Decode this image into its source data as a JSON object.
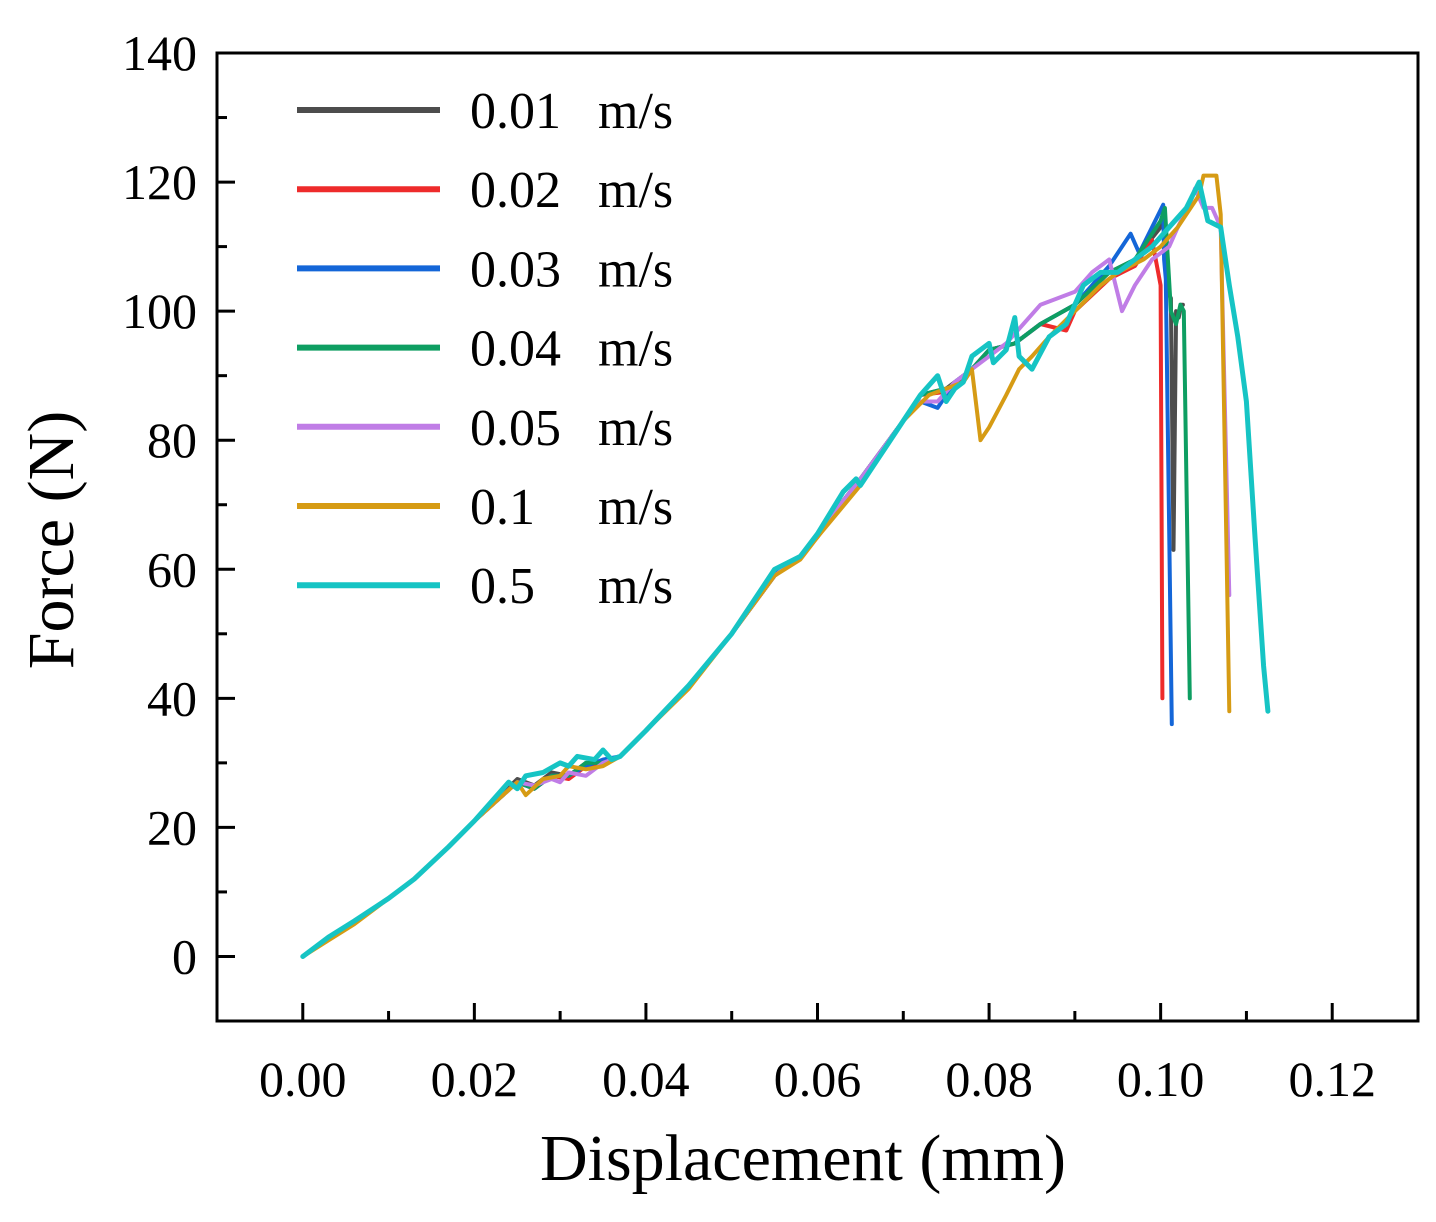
{
  "chart_data": {
    "type": "line",
    "title": "",
    "xlabel": "Displacement (mm)",
    "ylabel": "Force (N)",
    "xlim": [
      -0.01,
      0.13
    ],
    "ylim": [
      -10,
      140
    ],
    "xticks": [
      0.0,
      0.02,
      0.04,
      0.06,
      0.08,
      0.1,
      0.12
    ],
    "xtick_labels": [
      "0.00",
      "0.02",
      "0.04",
      "0.06",
      "0.08",
      "0.10",
      "0.12"
    ],
    "yticks": [
      0,
      20,
      40,
      60,
      80,
      100,
      120,
      140
    ],
    "ytick_labels": [
      "0",
      "20",
      "40",
      "60",
      "80",
      "100",
      "120",
      "140"
    ],
    "grid": false,
    "legend_position": "top-left",
    "series": [
      {
        "name": "0.01 m/s",
        "label_value": "0.01",
        "label_unit": "m/s",
        "color": "#4d4d4d",
        "points": [
          [
            0,
            0
          ],
          [
            0.003,
            3
          ],
          [
            0.006,
            5.5
          ],
          [
            0.01,
            9
          ],
          [
            0.013,
            12
          ],
          [
            0.017,
            17
          ],
          [
            0.02,
            21
          ],
          [
            0.025,
            27.5
          ],
          [
            0.027,
            26.5
          ],
          [
            0.029,
            28.5
          ],
          [
            0.031,
            28
          ],
          [
            0.033,
            30
          ],
          [
            0.035,
            30
          ],
          [
            0.037,
            31
          ],
          [
            0.04,
            35
          ],
          [
            0.045,
            42
          ],
          [
            0.05,
            50
          ],
          [
            0.055,
            59
          ],
          [
            0.058,
            62
          ],
          [
            0.06,
            65.5
          ],
          [
            0.065,
            74
          ],
          [
            0.07,
            83
          ],
          [
            0.072,
            87
          ],
          [
            0.075,
            88
          ],
          [
            0.078,
            91
          ],
          [
            0.08,
            94
          ],
          [
            0.083,
            95
          ],
          [
            0.086,
            98
          ],
          [
            0.09,
            101
          ],
          [
            0.094,
            106
          ],
          [
            0.097,
            108
          ],
          [
            0.1,
            113
          ],
          [
            0.1005,
            114
          ],
          [
            0.1008,
            103
          ],
          [
            0.1012,
            102
          ],
          [
            0.1015,
            63
          ],
          [
            0.1018,
            100
          ],
          [
            0.1021,
            99
          ],
          [
            0.1024,
            101
          ],
          [
            0.1026,
            101
          ]
        ]
      },
      {
        "name": "0.02 m/s",
        "label_value": "0.02",
        "label_unit": "m/s",
        "color": "#ee2b2b",
        "points": [
          [
            0,
            0
          ],
          [
            0.003,
            3
          ],
          [
            0.006,
            5.5
          ],
          [
            0.01,
            9
          ],
          [
            0.013,
            12
          ],
          [
            0.017,
            17
          ],
          [
            0.02,
            21
          ],
          [
            0.025,
            27
          ],
          [
            0.027,
            26
          ],
          [
            0.029,
            28
          ],
          [
            0.031,
            27.5
          ],
          [
            0.033,
            29.5
          ],
          [
            0.035,
            30
          ],
          [
            0.037,
            31
          ],
          [
            0.04,
            35
          ],
          [
            0.045,
            42
          ],
          [
            0.05,
            50
          ],
          [
            0.055,
            59
          ],
          [
            0.058,
            62
          ],
          [
            0.06,
            65
          ],
          [
            0.065,
            74
          ],
          [
            0.07,
            83
          ],
          [
            0.072,
            87
          ],
          [
            0.075,
            87.5
          ],
          [
            0.078,
            91
          ],
          [
            0.08,
            94
          ],
          [
            0.083,
            95
          ],
          [
            0.086,
            98
          ],
          [
            0.089,
            97
          ],
          [
            0.09,
            100
          ],
          [
            0.094,
            105
          ],
          [
            0.097,
            107
          ],
          [
            0.099,
            111
          ],
          [
            0.1,
            104
          ],
          [
            0.1002,
            40
          ]
        ]
      },
      {
        "name": "0.03 m/s",
        "label_value": "0.03",
        "label_unit": "m/s",
        "color": "#1466d8",
        "points": [
          [
            0,
            0
          ],
          [
            0.003,
            3
          ],
          [
            0.006,
            5.5
          ],
          [
            0.01,
            9
          ],
          [
            0.013,
            12
          ],
          [
            0.017,
            17
          ],
          [
            0.02,
            21
          ],
          [
            0.025,
            27
          ],
          [
            0.027,
            26
          ],
          [
            0.029,
            28
          ],
          [
            0.031,
            28
          ],
          [
            0.033,
            29.5
          ],
          [
            0.035,
            30.5
          ],
          [
            0.037,
            31
          ],
          [
            0.04,
            35
          ],
          [
            0.045,
            42
          ],
          [
            0.05,
            50
          ],
          [
            0.055,
            59.5
          ],
          [
            0.058,
            62
          ],
          [
            0.06,
            65.5
          ],
          [
            0.065,
            74
          ],
          [
            0.07,
            83
          ],
          [
            0.072,
            86
          ],
          [
            0.074,
            85
          ],
          [
            0.076,
            89
          ],
          [
            0.078,
            91
          ],
          [
            0.08,
            94
          ],
          [
            0.083,
            95
          ],
          [
            0.086,
            98
          ],
          [
            0.09,
            101
          ],
          [
            0.094,
            107
          ],
          [
            0.0965,
            112
          ],
          [
            0.0975,
            109
          ],
          [
            0.099,
            113
          ],
          [
            0.1003,
            116.5
          ],
          [
            0.1004,
            108
          ],
          [
            0.1006,
            105
          ],
          [
            0.1013,
            36
          ]
        ]
      },
      {
        "name": "0.04 m/s",
        "label_value": "0.04",
        "label_unit": "m/s",
        "color": "#0e9e62",
        "points": [
          [
            0,
            0
          ],
          [
            0.003,
            3
          ],
          [
            0.006,
            5.5
          ],
          [
            0.01,
            9
          ],
          [
            0.013,
            12
          ],
          [
            0.017,
            17
          ],
          [
            0.02,
            21
          ],
          [
            0.025,
            27
          ],
          [
            0.027,
            26
          ],
          [
            0.029,
            28
          ],
          [
            0.031,
            28
          ],
          [
            0.033,
            30
          ],
          [
            0.035,
            30
          ],
          [
            0.037,
            31
          ],
          [
            0.04,
            35
          ],
          [
            0.045,
            42
          ],
          [
            0.05,
            50
          ],
          [
            0.055,
            59
          ],
          [
            0.058,
            62
          ],
          [
            0.06,
            65.5
          ],
          [
            0.065,
            74
          ],
          [
            0.07,
            83
          ],
          [
            0.072,
            87
          ],
          [
            0.075,
            88
          ],
          [
            0.077,
            89
          ],
          [
            0.078,
            91
          ],
          [
            0.08,
            94
          ],
          [
            0.083,
            95
          ],
          [
            0.086,
            98
          ],
          [
            0.09,
            101
          ],
          [
            0.094,
            106
          ],
          [
            0.097,
            108
          ],
          [
            0.099,
            112
          ],
          [
            0.1,
            114
          ],
          [
            0.1005,
            116
          ],
          [
            0.1012,
            100
          ],
          [
            0.1018,
            98
          ],
          [
            0.1023,
            101
          ],
          [
            0.1027,
            100
          ],
          [
            0.1034,
            40
          ]
        ]
      },
      {
        "name": "0.05 m/s",
        "label_value": "0.05",
        "label_unit": "m/s",
        "color": "#c07de6",
        "points": [
          [
            0,
            0
          ],
          [
            0.003,
            3
          ],
          [
            0.006,
            5.5
          ],
          [
            0.01,
            9
          ],
          [
            0.013,
            12
          ],
          [
            0.017,
            17
          ],
          [
            0.02,
            21
          ],
          [
            0.025,
            27
          ],
          [
            0.027,
            26.5
          ],
          [
            0.029,
            27.5
          ],
          [
            0.03,
            27
          ],
          [
            0.031,
            28.5
          ],
          [
            0.033,
            28
          ],
          [
            0.035,
            30
          ],
          [
            0.037,
            31
          ],
          [
            0.04,
            35
          ],
          [
            0.045,
            42
          ],
          [
            0.05,
            50
          ],
          [
            0.055,
            59
          ],
          [
            0.058,
            62
          ],
          [
            0.06,
            65.5
          ],
          [
            0.065,
            74
          ],
          [
            0.07,
            83
          ],
          [
            0.072,
            86
          ],
          [
            0.074,
            86
          ],
          [
            0.076,
            89
          ],
          [
            0.078,
            91
          ],
          [
            0.08,
            93
          ],
          [
            0.082,
            95
          ],
          [
            0.084,
            98
          ],
          [
            0.086,
            101
          ],
          [
            0.088,
            102
          ],
          [
            0.09,
            103
          ],
          [
            0.092,
            106
          ],
          [
            0.094,
            108
          ],
          [
            0.0955,
            100
          ],
          [
            0.097,
            104
          ],
          [
            0.099,
            108
          ],
          [
            0.101,
            110
          ],
          [
            0.102,
            113
          ],
          [
            0.1035,
            117
          ],
          [
            0.104,
            119
          ],
          [
            0.105,
            116
          ],
          [
            0.106,
            116
          ],
          [
            0.107,
            113
          ],
          [
            0.108,
            56
          ]
        ]
      },
      {
        "name": "0.1   m/s",
        "label_value": "0.1",
        "label_unit": "m/s",
        "color": "#d69b14",
        "points": [
          [
            0,
            0
          ],
          [
            0.003,
            2.5
          ],
          [
            0.006,
            5
          ],
          [
            0.01,
            9
          ],
          [
            0.013,
            12
          ],
          [
            0.017,
            17
          ],
          [
            0.02,
            21
          ],
          [
            0.025,
            27
          ],
          [
            0.026,
            25
          ],
          [
            0.028,
            27.5
          ],
          [
            0.03,
            28
          ],
          [
            0.031,
            29.5
          ],
          [
            0.033,
            29
          ],
          [
            0.035,
            29.5
          ],
          [
            0.037,
            31
          ],
          [
            0.04,
            35
          ],
          [
            0.045,
            41.5
          ],
          [
            0.05,
            50
          ],
          [
            0.055,
            59
          ],
          [
            0.058,
            61.5
          ],
          [
            0.06,
            65
          ],
          [
            0.065,
            73
          ],
          [
            0.07,
            83
          ],
          [
            0.073,
            87
          ],
          [
            0.075,
            88
          ],
          [
            0.077,
            89
          ],
          [
            0.078,
            91
          ],
          [
            0.079,
            80
          ],
          [
            0.08,
            82
          ],
          [
            0.082,
            87
          ],
          [
            0.0835,
            91
          ],
          [
            0.085,
            93
          ],
          [
            0.087,
            96
          ],
          [
            0.09,
            100
          ],
          [
            0.093,
            104
          ],
          [
            0.095,
            106
          ],
          [
            0.098,
            108
          ],
          [
            0.1,
            110
          ],
          [
            0.102,
            113
          ],
          [
            0.1045,
            118
          ],
          [
            0.105,
            121
          ],
          [
            0.1065,
            121
          ],
          [
            0.107,
            115
          ],
          [
            0.108,
            38
          ]
        ]
      },
      {
        "name": "0.5   m/s",
        "label_value": "0.5",
        "label_unit": "m/s",
        "color": "#16c4c4",
        "points": [
          [
            0,
            0
          ],
          [
            0.003,
            3
          ],
          [
            0.006,
            5.5
          ],
          [
            0.01,
            9
          ],
          [
            0.013,
            12
          ],
          [
            0.017,
            17
          ],
          [
            0.02,
            21
          ],
          [
            0.024,
            27
          ],
          [
            0.025,
            26
          ],
          [
            0.026,
            28
          ],
          [
            0.028,
            28.5
          ],
          [
            0.03,
            30
          ],
          [
            0.031,
            29.5
          ],
          [
            0.032,
            31
          ],
          [
            0.034,
            30.5
          ],
          [
            0.035,
            32
          ],
          [
            0.036,
            30.5
          ],
          [
            0.037,
            31
          ],
          [
            0.04,
            35
          ],
          [
            0.045,
            42
          ],
          [
            0.05,
            50
          ],
          [
            0.055,
            60
          ],
          [
            0.058,
            62
          ],
          [
            0.06,
            65.5
          ],
          [
            0.063,
            72
          ],
          [
            0.0645,
            74
          ],
          [
            0.065,
            73
          ],
          [
            0.067,
            77
          ],
          [
            0.07,
            83
          ],
          [
            0.072,
            87
          ],
          [
            0.074,
            90
          ],
          [
            0.075,
            86
          ],
          [
            0.076,
            88
          ],
          [
            0.077,
            89
          ],
          [
            0.078,
            93
          ],
          [
            0.08,
            95
          ],
          [
            0.0805,
            92
          ],
          [
            0.082,
            94
          ],
          [
            0.083,
            99
          ],
          [
            0.0835,
            93
          ],
          [
            0.085,
            91
          ],
          [
            0.087,
            96
          ],
          [
            0.089,
            98
          ],
          [
            0.09,
            101
          ],
          [
            0.091,
            104
          ],
          [
            0.093,
            106
          ],
          [
            0.095,
            106
          ],
          [
            0.097,
            108
          ],
          [
            0.099,
            110
          ],
          [
            0.101,
            113
          ],
          [
            0.103,
            116
          ],
          [
            0.1045,
            120
          ],
          [
            0.1055,
            114
          ],
          [
            0.107,
            113
          ],
          [
            0.108,
            104
          ],
          [
            0.109,
            96
          ],
          [
            0.11,
            86
          ],
          [
            0.111,
            65
          ],
          [
            0.112,
            45
          ],
          [
            0.1125,
            38
          ]
        ]
      }
    ]
  }
}
